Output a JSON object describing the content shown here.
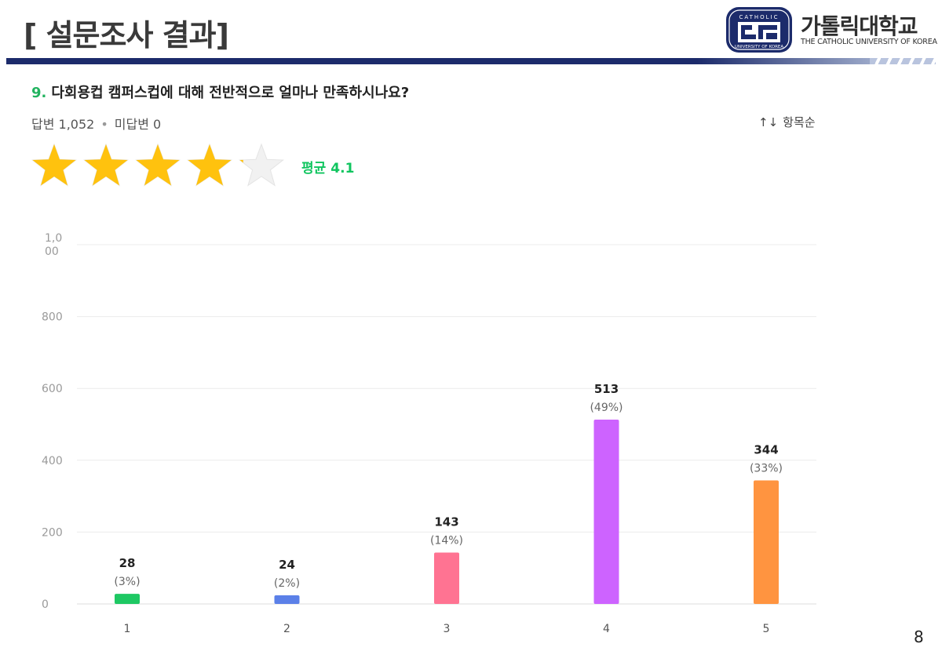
{
  "header": {
    "title": "[ 설문조사 결과]",
    "logo_name": "가톨릭대학교",
    "logo_en": "THE CATHOLIC UNIVERSITY OF KOREA",
    "emblem_top_text": "CATHOLIC",
    "emblem_bottom_text": "UNIVERSITY OF KOREA"
  },
  "question": {
    "number": "9.",
    "text": "다회용컵 캠퍼스컵에 대해 전반적으로 얼마나 만족하시나요?"
  },
  "meta": {
    "answers": "답변 1,052",
    "unanswered": "미답변 0"
  },
  "sort": {
    "label": "항목순",
    "icon": "sort-arrows-icon"
  },
  "rating": {
    "average_label": "평균",
    "average_value": "4.1",
    "value": 4.1,
    "max": 5,
    "star_color": "#FFC20E",
    "empty_star_color": "#f1f1f1"
  },
  "chart_data": {
    "type": "bar",
    "categories": [
      "1",
      "2",
      "3",
      "4",
      "5"
    ],
    "values": [
      28,
      24,
      143,
      513,
      344
    ],
    "percent_labels": [
      "(3%)",
      "(2%)",
      "(14%)",
      "(49%)",
      "(33%)"
    ],
    "colors": [
      "#1ec863",
      "#5b80e8",
      "#ff7392",
      "#cd63ff",
      "#ff9440"
    ],
    "ylim": [
      0,
      1000
    ],
    "yticks": [
      0,
      200,
      400,
      600,
      800,
      1000
    ],
    "ytick_labels": [
      "0",
      "200",
      "400",
      "600",
      "800",
      "1,0\n00"
    ],
    "grid": true,
    "title": "",
    "xlabel": "",
    "ylabel": ""
  },
  "page_number": "8"
}
